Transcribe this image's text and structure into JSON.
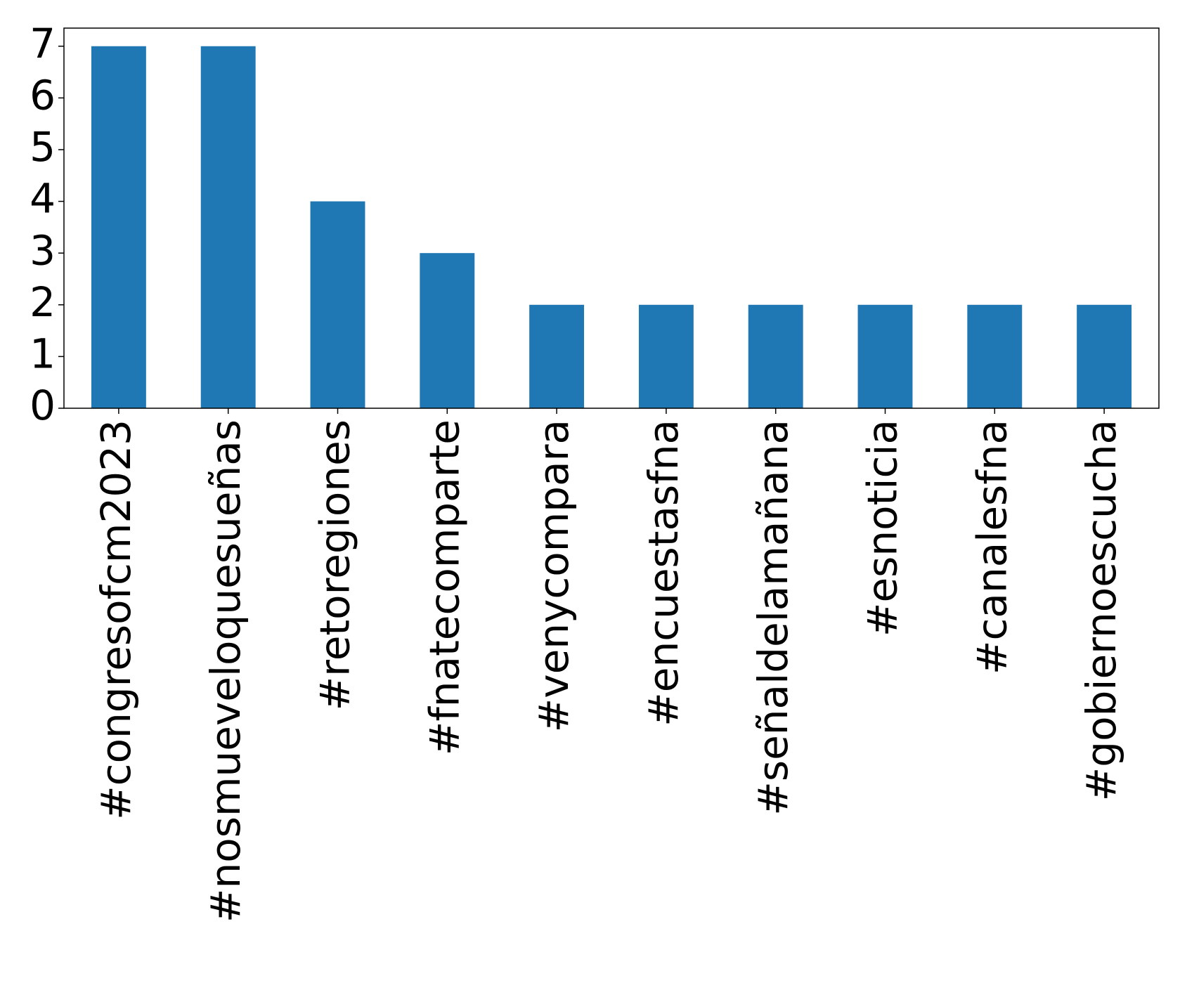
{
  "chart_data": {
    "type": "bar",
    "categories": [
      "#congresofcm2023",
      "#nosmueveloquesueñas",
      "#retoregiones",
      "#fnatecomparte",
      "#venycompara",
      "#encuestasfna",
      "#señaldelamañana",
      "#esnoticia",
      "#canalesfna",
      "#gobiernoescucha"
    ],
    "values": [
      7,
      7,
      4,
      3,
      2,
      2,
      2,
      2,
      2,
      2
    ],
    "color": "#1f77b4",
    "ylim": [
      0,
      7.35
    ],
    "yticks": [
      0,
      1,
      2,
      3,
      4,
      5,
      6,
      7
    ],
    "grid": false
  }
}
